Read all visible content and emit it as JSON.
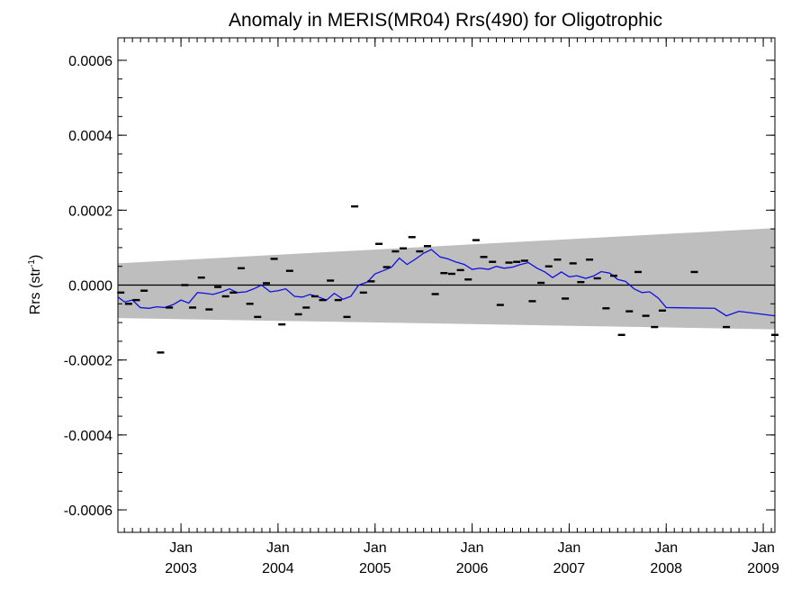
{
  "chart_data": {
    "type": "scatter",
    "title": "Anomaly in MERIS(MR04) Rrs(490) for Oligotrophic",
    "ylabel_main": "Rrs (str",
    "ylabel_sup": "-1",
    "ylabel_close": ")",
    "xlabel": "",
    "xlim": [
      2002.35,
      2009.12
    ],
    "ylim": [
      -0.00066,
      0.00066
    ],
    "y_ticks": [
      {
        "value": 0.0006,
        "label": "0.0006"
      },
      {
        "value": 0.0004,
        "label": "0.0004"
      },
      {
        "value": 0.0002,
        "label": "0.0002"
      },
      {
        "value": 0.0,
        "label": "0.0000"
      },
      {
        "value": -0.0002,
        "label": "-0.0002"
      },
      {
        "value": -0.0004,
        "label": "-0.0004"
      },
      {
        "value": -0.0006,
        "label": "-0.0006"
      }
    ],
    "x_ticks": [
      {
        "value": 2003.0,
        "month": "Jan",
        "year": "2003"
      },
      {
        "value": 2004.0,
        "month": "Jan",
        "year": "2004"
      },
      {
        "value": 2005.0,
        "month": "Jan",
        "year": "2005"
      },
      {
        "value": 2006.0,
        "month": "Jan",
        "year": "2006"
      },
      {
        "value": 2007.0,
        "month": "Jan",
        "year": "2007"
      },
      {
        "value": 2008.0,
        "month": "Jan",
        "year": "2008"
      },
      {
        "value": 2009.0,
        "month": "Jan",
        "year": "2009"
      }
    ],
    "zero_line": 0.0,
    "envelope": {
      "x": [
        2002.35,
        2009.12
      ],
      "upper": [
        5.8e-05,
        0.000152
      ],
      "lower": [
        -8.8e-05,
        -0.000118
      ],
      "color": "#bebebe"
    },
    "points": {
      "color": "#000000",
      "x": [
        2002.38,
        2002.46,
        2002.54,
        2002.62,
        2002.79,
        2002.88,
        2003.04,
        2003.12,
        2003.21,
        2003.29,
        2003.38,
        2003.46,
        2003.54,
        2003.62,
        2003.71,
        2003.79,
        2003.88,
        2003.96,
        2004.04,
        2004.12,
        2004.21,
        2004.29,
        2004.38,
        2004.46,
        2004.54,
        2004.62,
        2004.71,
        2004.79,
        2004.88,
        2004.96,
        2005.04,
        2005.12,
        2005.21,
        2005.29,
        2005.38,
        2005.46,
        2005.54,
        2005.62,
        2005.71,
        2005.79,
        2005.88,
        2005.96,
        2006.04,
        2006.12,
        2006.21,
        2006.29,
        2006.38,
        2006.46,
        2006.54,
        2006.62,
        2006.71,
        2006.79,
        2006.88,
        2006.96,
        2007.04,
        2007.12,
        2007.21,
        2007.29,
        2007.38,
        2007.46,
        2007.54,
        2007.62,
        2007.71,
        2007.79,
        2007.88,
        2007.96,
        2008.29,
        2008.62,
        2009.12
      ],
      "y": [
        -2e-05,
        -5e-05,
        -4e-05,
        -1.5e-05,
        -0.00018,
        -6e-05,
        0.0,
        -6e-05,
        2e-05,
        -6.5e-05,
        -5e-06,
        -3e-05,
        -2e-05,
        4.5e-05,
        -5e-05,
        -8.5e-05,
        5e-06,
        7e-05,
        -0.000105,
        3.8e-05,
        -7.8e-05,
        -6e-05,
        -3e-05,
        -4e-05,
        1.2e-05,
        -4e-05,
        -8.5e-05,
        0.00021,
        -2e-05,
        1e-05,
        0.00011,
        4.8e-05,
        9e-05,
        9.8e-05,
        0.000128,
        9e-05,
        0.000104,
        -2.4e-05,
        3.2e-05,
        3e-05,
        4e-05,
        1.5e-05,
        0.00012,
        7.5e-05,
        6.2e-05,
        -5.3e-05,
        6e-05,
        6.2e-05,
        6.5e-05,
        -4.3e-05,
        6e-06,
        5e-05,
        6.8e-05,
        -3.6e-05,
        5.8e-05,
        8e-06,
        6.8e-05,
        1.8e-05,
        -6.2e-05,
        2.5e-05,
        -0.000133,
        -7e-05,
        3.5e-05,
        -8.2e-05,
        -0.000112,
        -6.8e-05,
        3.5e-05,
        -0.000112,
        -0.000133
      ]
    },
    "line": {
      "color": "#1010e0",
      "x": [
        2002.35,
        2002.42,
        2002.5,
        2002.58,
        2002.67,
        2002.75,
        2002.83,
        2002.92,
        2003.0,
        2003.08,
        2003.17,
        2003.25,
        2003.33,
        2003.42,
        2003.5,
        2003.58,
        2003.67,
        2003.75,
        2003.83,
        2003.92,
        2004.0,
        2004.08,
        2004.17,
        2004.25,
        2004.33,
        2004.42,
        2004.5,
        2004.58,
        2004.67,
        2004.75,
        2004.83,
        2004.92,
        2005.0,
        2005.08,
        2005.17,
        2005.25,
        2005.33,
        2005.42,
        2005.5,
        2005.58,
        2005.67,
        2005.75,
        2005.83,
        2005.92,
        2006.0,
        2006.08,
        2006.17,
        2006.25,
        2006.33,
        2006.42,
        2006.5,
        2006.58,
        2006.67,
        2006.75,
        2006.83,
        2006.92,
        2007.0,
        2007.08,
        2007.17,
        2007.25,
        2007.33,
        2007.42,
        2007.5,
        2007.58,
        2007.67,
        2007.75,
        2007.83,
        2007.92,
        2008.0,
        2008.5,
        2008.62,
        2008.75,
        2009.12
      ],
      "y": [
        -3.2e-05,
        -4.5e-05,
        -4e-05,
        -6e-05,
        -6.2e-05,
        -5.8e-05,
        -6e-05,
        -5.2e-05,
        -4e-05,
        -4.8e-05,
        -2e-05,
        -2.2e-05,
        -2.5e-05,
        -1.8e-05,
        -1e-05,
        -2e-05,
        -1.8e-05,
        -1e-05,
        0.0,
        -1.8e-05,
        -1.5e-05,
        -1e-05,
        -3e-05,
        -3.2e-05,
        -2.5e-05,
        -3.2e-05,
        -4e-05,
        -2.2e-05,
        -3.8e-05,
        -3e-05,
        0.0,
        8e-06,
        3e-05,
        3.8e-05,
        4.8e-05,
        7.2e-05,
        5.5e-05,
        7e-05,
        8.5e-05,
        9.5e-05,
        7.5e-05,
        7e-05,
        6.2e-05,
        5.5e-05,
        4.2e-05,
        4.5e-05,
        4.2e-05,
        5e-05,
        4.5e-05,
        4.8e-05,
        5.5e-05,
        6e-05,
        4.5e-05,
        3.5e-05,
        2e-05,
        3.5e-05,
        2.2e-05,
        2.5e-05,
        1.8e-05,
        2.4e-05,
        3.6e-05,
        3.2e-05,
        1.5e-05,
        1e-05,
        -1e-05,
        -2e-05,
        -1.8e-05,
        -3.5e-05,
        -6e-05,
        -6.2e-05,
        -8.2e-05,
        -7e-05,
        -8.2e-05
      ]
    }
  }
}
